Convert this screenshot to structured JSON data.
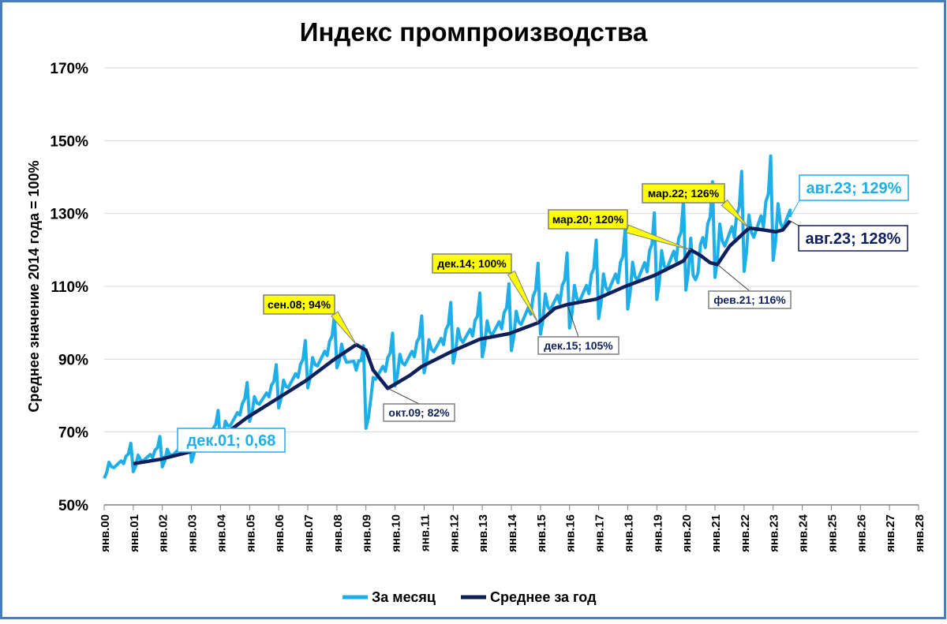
{
  "chart_data": {
    "type": "line",
    "title": "Индекс промпроизводства",
    "ylabel": "Среднее значение 2014 года = 100%",
    "xlabel": "",
    "ylim": [
      50,
      170
    ],
    "y_ticks": [
      50,
      70,
      90,
      110,
      130,
      150,
      170
    ],
    "y_tick_labels": [
      "50%",
      "70%",
      "90%",
      "110%",
      "130%",
      "150%",
      "170%"
    ],
    "x_range_years": [
      2000,
      2028
    ],
    "x_tick_labels": [
      "янв.00",
      "янв.01",
      "янв.02",
      "янв.03",
      "янв.04",
      "янв.05",
      "янв.06",
      "янв.07",
      "янв.08",
      "янв.09",
      "янв.10",
      "янв.11",
      "янв.12",
      "янв.13",
      "янв.14",
      "янв.15",
      "янв.16",
      "янв.17",
      "янв.18",
      "янв.19",
      "янв.20",
      "янв.21",
      "янв.22",
      "янв.23",
      "янв.24",
      "янв.25",
      "янв.26",
      "янв.27",
      "янв.28"
    ],
    "grid": "horizontal",
    "legend_position": "bottom",
    "series": [
      {
        "name": "За месяц",
        "color": "#1EAEE8",
        "annual_anchors_dec_to_dec": [
          [
            2000,
            60
          ],
          [
            2001,
            62
          ],
          [
            2002,
            63.5
          ],
          [
            2003,
            65
          ],
          [
            2004,
            70
          ],
          [
            2005,
            77
          ],
          [
            2006,
            81
          ],
          [
            2007,
            87
          ],
          [
            2008,
            93
          ],
          [
            2009,
            84
          ],
          [
            2010,
            88
          ],
          [
            2011,
            92
          ],
          [
            2012,
            95
          ],
          [
            2013,
            97
          ],
          [
            2014,
            99
          ],
          [
            2015,
            104
          ],
          [
            2016,
            106
          ],
          [
            2017,
            109
          ],
          [
            2018,
            112
          ],
          [
            2019,
            115
          ],
          [
            2020,
            118
          ],
          [
            2021,
            122
          ],
          [
            2022,
            124
          ],
          [
            2023,
            127.5
          ]
        ],
        "seasonal_pattern_pct": [
          -0.06,
          -0.03,
          0.03,
          0.0,
          -0.01,
          0.0,
          0.01,
          0.02,
          0.0,
          0.04,
          0.05,
          0.11
        ],
        "end": [
          2023.583,
          129
        ]
      },
      {
        "name": "Среднее за год",
        "color": "#0E1F5A",
        "points": [
          [
            2001.0,
            61.3
          ],
          [
            2001.917,
            62.5
          ],
          [
            2002.917,
            64.5
          ],
          [
            2003.917,
            68.0
          ],
          [
            2004.917,
            74.0
          ],
          [
            2005.917,
            79.0
          ],
          [
            2006.917,
            84.0
          ],
          [
            2007.917,
            90.0
          ],
          [
            2008.667,
            94.0
          ],
          [
            2009.0,
            92.5
          ],
          [
            2009.25,
            87.0
          ],
          [
            2009.75,
            82.0
          ],
          [
            2010.5,
            85.5
          ],
          [
            2010.917,
            88.0
          ],
          [
            2011.917,
            92.0
          ],
          [
            2012.917,
            95.5
          ],
          [
            2013.917,
            97.0
          ],
          [
            2014.917,
            100.0
          ],
          [
            2015.5,
            104.0
          ],
          [
            2015.917,
            105.0
          ],
          [
            2016.917,
            106.5
          ],
          [
            2017.917,
            110.0
          ],
          [
            2018.917,
            113.0
          ],
          [
            2019.917,
            117.0
          ],
          [
            2020.167,
            120.0
          ],
          [
            2020.5,
            118.5
          ],
          [
            2020.833,
            116.5
          ],
          [
            2021.083,
            116.0
          ],
          [
            2021.5,
            121.0
          ],
          [
            2022.167,
            126.0
          ],
          [
            2022.583,
            125.6
          ],
          [
            2023.083,
            125.0
          ],
          [
            2023.333,
            125.5
          ],
          [
            2023.583,
            128.0
          ]
        ]
      }
    ],
    "annotations": [
      {
        "text": "сен.08; 94%",
        "style": "yellow",
        "at": [
          2008.667,
          94
        ]
      },
      {
        "text": "окт.09; 82%",
        "style": "white",
        "at": [
          2009.75,
          82
        ]
      },
      {
        "text": "дек.14; 100%",
        "style": "yellow",
        "at": [
          2014.917,
          100
        ]
      },
      {
        "text": "дек.15; 105%",
        "style": "white",
        "at": [
          2015.917,
          105
        ]
      },
      {
        "text": "мар.20; 120%",
        "style": "yellow",
        "at": [
          2020.167,
          120
        ]
      },
      {
        "text": "фев.21; 116%",
        "style": "white",
        "at": [
          2021.083,
          116
        ]
      },
      {
        "text": "мар.22; 126%",
        "style": "yellow",
        "at": [
          2022.167,
          126
        ]
      },
      {
        "text": "дек.01; 0,68",
        "style": "cyan-big",
        "at": [
          2001.917,
          63
        ]
      },
      {
        "text": "авг.23; 129%",
        "style": "cyan-big",
        "at": [
          2023.583,
          129
        ]
      },
      {
        "text": "авг.23; 128%",
        "style": "navy-big",
        "at": [
          2023.583,
          128
        ]
      }
    ]
  }
}
